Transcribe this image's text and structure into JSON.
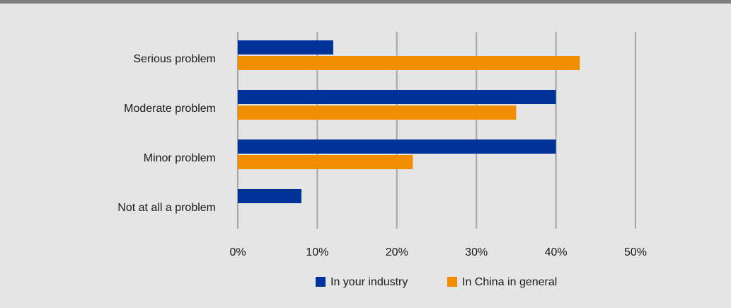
{
  "colors": {
    "background": "#e5e5e5",
    "top_border": "#808080",
    "grid": "#a6a6a6",
    "series_1": "#003399",
    "series_2": "#f28c00"
  },
  "chart_data": {
    "type": "bar",
    "orientation": "horizontal",
    "title": "",
    "xlabel": "",
    "ylabel": "",
    "categories": [
      "Serious problem",
      "Moderate problem",
      "Minor problem",
      "Not at all a problem"
    ],
    "series": [
      {
        "name": "In your industry",
        "values": [
          12,
          40,
          40,
          8
        ]
      },
      {
        "name": "In China in general",
        "values": [
          43,
          35,
          22,
          0
        ]
      }
    ],
    "xlim": [
      0,
      50
    ],
    "x_ticks": [
      0,
      10,
      20,
      30,
      40,
      50
    ],
    "tick_suffix": "%",
    "grid": "vertical",
    "legend_position": "bottom"
  }
}
